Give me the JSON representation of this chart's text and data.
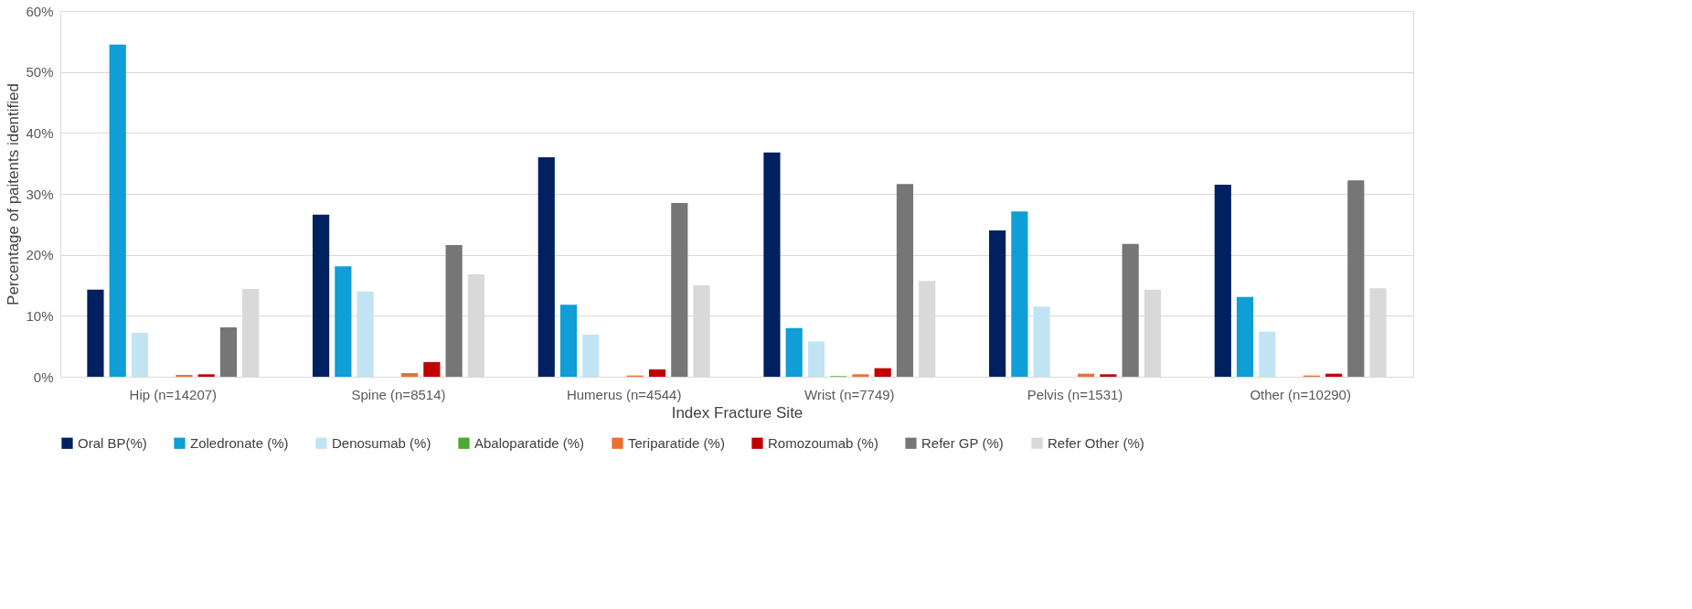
{
  "chart_data": {
    "type": "bar",
    "xlabel": "Index Fracture Site",
    "ylabel": "Percentage of paitents identified",
    "categories": [
      "Hip (n=14207)",
      "Spine (n=8514)",
      "Humerus (n=4544)",
      "Wrist (n=7749)",
      "Pelvis (n=1531)",
      "Other (n=10290)"
    ],
    "series": [
      {
        "name": "Oral BP(%)",
        "color": "#002060",
        "values": [
          14.3,
          26.6,
          36.0,
          36.8,
          24.0,
          31.5
        ]
      },
      {
        "name": "Zoledronate (%)",
        "color": "#0f9ed5",
        "values": [
          54.5,
          18.1,
          11.8,
          8.0,
          27.1,
          13.1
        ]
      },
      {
        "name": "Denosumab (%)",
        "color": "#c1e4f5",
        "values": [
          7.2,
          14.0,
          6.9,
          5.8,
          11.5,
          7.4
        ]
      },
      {
        "name": "Abaloparatide (%)",
        "color": "#4ea72e",
        "values": [
          0,
          0,
          0,
          0.1,
          0,
          0
        ]
      },
      {
        "name": "Teriparatide (%)",
        "color": "#e97132",
        "values": [
          0.3,
          0.6,
          0.2,
          0.4,
          0.5,
          0.2
        ]
      },
      {
        "name": "Romozoumab (%)",
        "color": "#c00000",
        "values": [
          0.4,
          2.4,
          1.2,
          1.4,
          0.4,
          0.5
        ]
      },
      {
        "name": "Refer GP (%)",
        "color": "#767676",
        "values": [
          8.1,
          21.6,
          28.5,
          31.6,
          21.8,
          32.2
        ]
      },
      {
        "name": "Refer Other (%)",
        "color": "#d9d9d9",
        "values": [
          14.4,
          16.8,
          15.0,
          15.7,
          14.3,
          14.5
        ]
      }
    ],
    "ylim": [
      0,
      60
    ],
    "yticks": [
      {
        "value": 0,
        "label": "0%"
      },
      {
        "value": 10,
        "label": "10%"
      },
      {
        "value": 20,
        "label": "20%"
      },
      {
        "value": 30,
        "label": "30%"
      },
      {
        "value": 40,
        "label": "40%"
      },
      {
        "value": 50,
        "label": "50%"
      },
      {
        "value": 60,
        "label": "60%"
      }
    ],
    "grid": "y",
    "legend": "bottom"
  }
}
